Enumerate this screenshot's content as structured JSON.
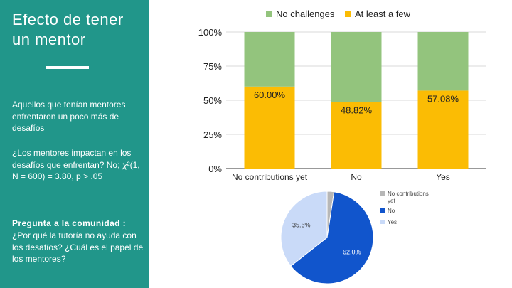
{
  "sidebar": {
    "title": "Efecto de tener un mentor",
    "para1": "Aquellos que tenían mentores enfrentaron un poco más de desafíos",
    "para2": "¿Los mentores impactan en los desafíos que enfrentan? No; 𝜒²(1, N = 600) = 3.80, p > .05",
    "question_title": "Pregunta a la comunidad :",
    "question_text": "¿Por qué la tutoría no ayuda con los desafíos? ¿Cuál es el papel de los mentores?"
  },
  "colors": {
    "sidebar_bg": "#21968a",
    "no_challenges": "#93c47d",
    "at_least_a_few": "#fbbc04",
    "pie_no_contributions": "#b7b7b7",
    "pie_no": "#1155cc",
    "pie_yes": "#c9daf8"
  },
  "chart_data": [
    {
      "type": "bar",
      "stacked": true,
      "categories": [
        "No contributions yet",
        "No",
        "Yes"
      ],
      "series": [
        {
          "name": "No challenges",
          "values": [
            40.0,
            51.18,
            42.92
          ]
        },
        {
          "name": "At least a few",
          "values": [
            60.0,
            48.82,
            57.08
          ]
        }
      ],
      "data_labels": [
        "60.00%",
        "48.82%",
        "57.08%"
      ],
      "y_ticks": [
        "0%",
        "25%",
        "50%",
        "75%",
        "100%"
      ],
      "ylim": [
        0,
        100
      ],
      "legend": "top",
      "grid": true
    },
    {
      "type": "pie",
      "categories": [
        "No contributions yet",
        "No",
        "Yes"
      ],
      "values": [
        2.4,
        62.0,
        35.6
      ],
      "labels": [
        "",
        "62.0%",
        "35.6%"
      ],
      "legend": "right"
    }
  ]
}
